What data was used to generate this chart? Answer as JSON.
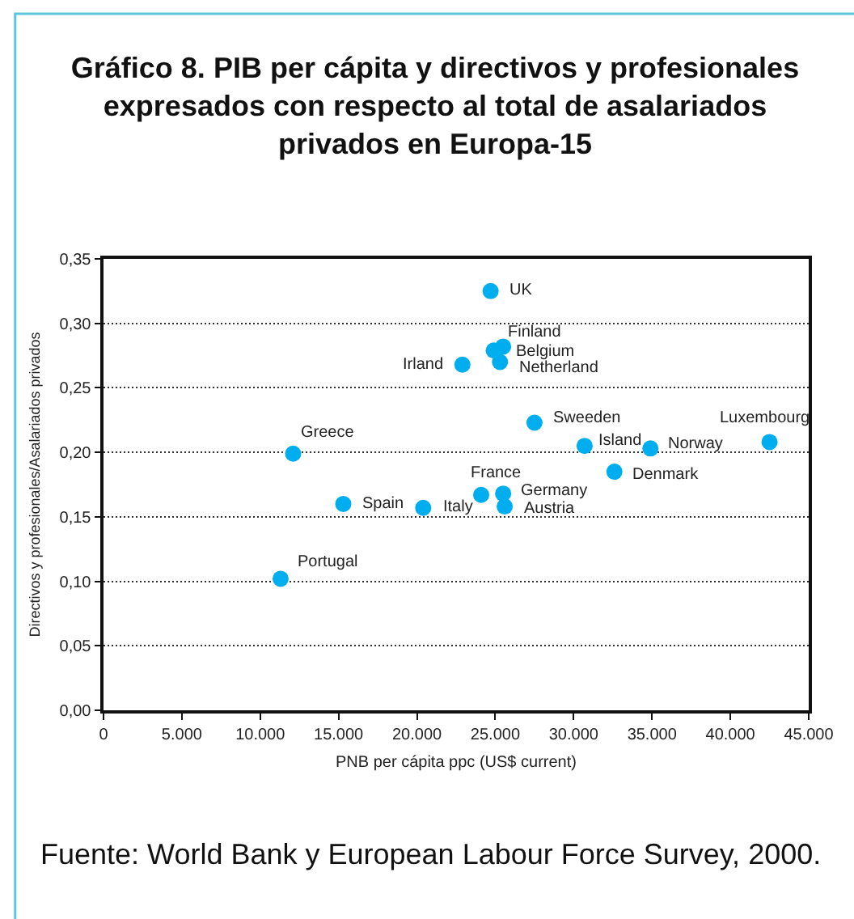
{
  "chart_data": {
    "type": "scatter",
    "title": "Gráfico 8. PIB per cápita y directivos y profesionales\nexpresados con respecto al total de asalariados\nprivados en Europa-15",
    "xlabel": "PNB per cápita ppc (US$ current)",
    "ylabel": "Directivos y profesionales/Asalariados privados",
    "x": [
      24700,
      25500,
      24900,
      25300,
      22900,
      27500,
      42500,
      30700,
      34900,
      12100,
      32600,
      24100,
      25500,
      25600,
      15300,
      20400,
      11300
    ],
    "values": [
      0.325,
      0.282,
      0.279,
      0.27,
      0.268,
      0.223,
      0.208,
      0.205,
      0.203,
      0.199,
      0.185,
      0.167,
      0.168,
      0.158,
      0.16,
      0.157,
      0.102
    ],
    "color": "#00aeef",
    "marker": "circle",
    "grid": "y",
    "xlim": [
      0,
      45000
    ],
    "xticks": [
      0,
      {
        "value": 5000,
        "label": "5.000"
      },
      {
        "value": 10000,
        "label": "10.000"
      },
      {
        "value": 15000,
        "label": "15.000"
      },
      {
        "value": 20000,
        "label": "20.000"
      },
      {
        "value": 25000,
        "label": "25.000"
      },
      {
        "value": 30000,
        "label": "30.000"
      },
      {
        "value": 35000,
        "label": "35.000"
      },
      {
        "value": 40000,
        "label": "40.000"
      },
      {
        "value": 45000,
        "label": "45.000"
      }
    ],
    "ylim": [
      0,
      0.35
    ],
    "yticks": [
      {
        "value": 0,
        "label": "0,00"
      },
      {
        "value": 0.05,
        "label": "0,05"
      },
      {
        "value": 0.1,
        "label": "0,10"
      },
      {
        "value": 0.15,
        "label": "0,15"
      },
      {
        "value": 0.2,
        "label": "0,20"
      },
      {
        "value": 0.25,
        "label": "0,25"
      },
      {
        "value": 0.3,
        "label": "0,30"
      },
      {
        "value": 0.35,
        "label": "0,35"
      }
    ],
    "annotations": [
      {
        "text": "UK",
        "x": 24700,
        "y": 0.325
      },
      {
        "text": "Finland",
        "x": 25500,
        "y": 0.282
      },
      {
        "text": "Belgium",
        "x": 24900,
        "y": 0.279
      },
      {
        "text": "Netherland",
        "x": 25300,
        "y": 0.27
      },
      {
        "text": "Irland",
        "x": 22900,
        "y": 0.268
      },
      {
        "text": "Sweeden",
        "x": 27500,
        "y": 0.223
      },
      {
        "text": "Luxembourg",
        "x": 42500,
        "y": 0.208
      },
      {
        "text": "Island",
        "x": 30700,
        "y": 0.205
      },
      {
        "text": "Norway",
        "x": 34900,
        "y": 0.203
      },
      {
        "text": "Greece",
        "x": 12100,
        "y": 0.199
      },
      {
        "text": "Denmark",
        "x": 32600,
        "y": 0.185
      },
      {
        "text": "France",
        "x": 24100,
        "y": 0.167
      },
      {
        "text": "Germany",
        "x": 25500,
        "y": 0.168
      },
      {
        "text": "Austria",
        "x": 25600,
        "y": 0.158
      },
      {
        "text": "Spain",
        "x": 15300,
        "y": 0.16
      },
      {
        "text": "Italy",
        "x": 20400,
        "y": 0.157
      },
      {
        "text": "Portugal",
        "x": 11300,
        "y": 0.102
      },
      "Fuente: World Bank y European Labour Force Survey, 2000."
    ]
  }
}
